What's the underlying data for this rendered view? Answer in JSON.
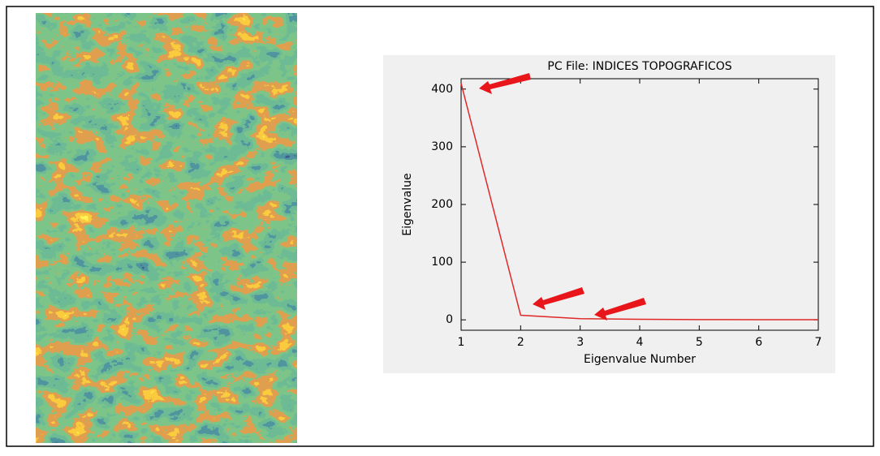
{
  "chart_data": {
    "type": "line",
    "title": "PC File: INDICES TOPOGRAFICOS",
    "x_label": "Eigenvalue Number",
    "y_label": "Eigenvalue",
    "x": [
      1,
      2,
      3,
      4,
      5,
      6,
      7
    ],
    "values": [
      410,
      8,
      2,
      1,
      0.5,
      0.3,
      0.2
    ],
    "color": "#e02828",
    "xlim": [
      1,
      7
    ],
    "xticks": [
      1,
      2,
      3,
      4,
      5,
      6,
      7
    ],
    "ylim": [
      -18,
      418
    ],
    "yticks": [
      0,
      100,
      200,
      300,
      400
    ]
  }
}
